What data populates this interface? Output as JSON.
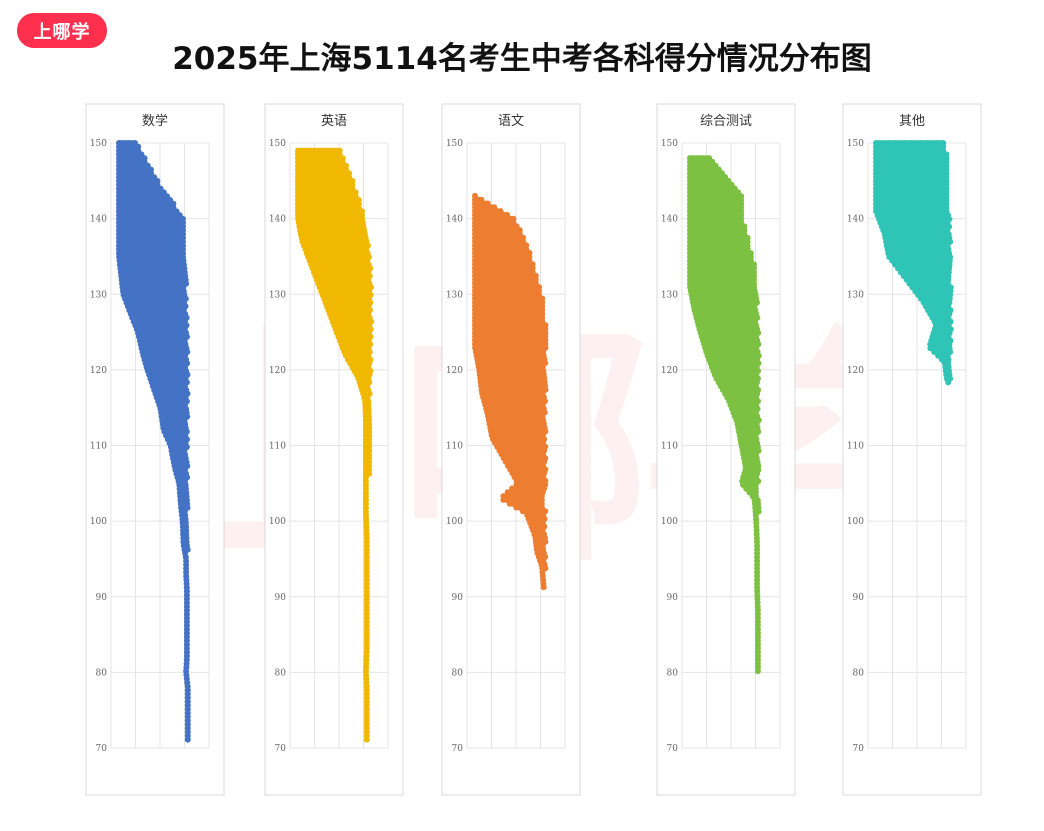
{
  "brand": {
    "label": "上哪学"
  },
  "title": "2025年上海5114名考生中考各科得分情况分布图",
  "watermark": "上哪学",
  "chart_data": [
    {
      "type": "scatter",
      "title": "数学",
      "color": "#4472c4",
      "ylim": [
        70,
        150
      ],
      "yticks": [
        150,
        140,
        130,
        120,
        110,
        100,
        90,
        80,
        70
      ],
      "x_range": [
        0,
        1
      ],
      "grid": true,
      "bands": [
        [
          150,
          0.0,
          0.2
        ],
        [
          145,
          0.0,
          0.45
        ],
        [
          140,
          0.0,
          0.75
        ],
        [
          135,
          0.0,
          0.78
        ],
        [
          130,
          0.05,
          0.78
        ],
        [
          127,
          0.15,
          0.79
        ],
        [
          125,
          0.22,
          0.79
        ],
        [
          122,
          0.28,
          0.8
        ],
        [
          120,
          0.33,
          0.8
        ],
        [
          117,
          0.42,
          0.8
        ],
        [
          115,
          0.48,
          0.8
        ],
        [
          112,
          0.52,
          0.79
        ],
        [
          110,
          0.6,
          0.79
        ],
        [
          107,
          0.65,
          0.8
        ],
        [
          105,
          0.7,
          0.8
        ],
        [
          102,
          0.72,
          0.8
        ],
        [
          100,
          0.74,
          0.8
        ],
        [
          97,
          0.75,
          0.8
        ],
        [
          95,
          0.78,
          0.8
        ],
        [
          93,
          0.78,
          0.8
        ],
        [
          91,
          0.79,
          0.8
        ],
        [
          89,
          0.79,
          0.8
        ],
        [
          87,
          0.79,
          0.8
        ],
        [
          85,
          0.79,
          0.8
        ],
        [
          83,
          0.79,
          0.8
        ],
        [
          82,
          0.79,
          0.8
        ],
        [
          80,
          0.78,
          0.78
        ],
        [
          78,
          0.8,
          0.8
        ],
        [
          77,
          0.8,
          0.8
        ],
        [
          75,
          0.8,
          0.8
        ],
        [
          73,
          0.8,
          0.8
        ],
        [
          71,
          0.8,
          0.8
        ]
      ]
    },
    {
      "type": "scatter",
      "title": "英语",
      "color": "#f0b800",
      "ylim": [
        70,
        150
      ],
      "yticks": [
        150,
        140,
        130,
        120,
        110,
        100,
        90,
        80,
        70
      ],
      "x_range": [
        0,
        1
      ],
      "grid": true,
      "bands": [
        [
          149,
          0.0,
          0.5
        ],
        [
          146,
          0.0,
          0.6
        ],
        [
          143,
          0.0,
          0.7
        ],
        [
          140,
          0.0,
          0.78
        ],
        [
          137,
          0.05,
          0.82
        ],
        [
          134,
          0.15,
          0.84
        ],
        [
          131,
          0.25,
          0.85
        ],
        [
          128,
          0.35,
          0.85
        ],
        [
          125,
          0.45,
          0.85
        ],
        [
          122,
          0.55,
          0.85
        ],
        [
          119,
          0.7,
          0.84
        ],
        [
          116,
          0.78,
          0.84
        ],
        [
          113,
          0.79,
          0.83
        ],
        [
          110,
          0.79,
          0.83
        ],
        [
          107,
          0.79,
          0.83
        ],
        [
          104,
          0.79,
          0.82
        ],
        [
          101,
          0.79,
          0.82
        ],
        [
          98,
          0.8,
          0.82
        ],
        [
          95,
          0.8,
          0.82
        ],
        [
          92,
          0.8,
          0.82
        ],
        [
          89,
          0.8,
          0.82
        ],
        [
          86,
          0.8,
          0.82
        ],
        [
          83,
          0.8,
          0.82
        ],
        [
          80,
          0.79,
          0.82
        ],
        [
          78,
          0.8,
          0.81
        ],
        [
          74,
          0.8,
          0.82
        ],
        [
          72,
          0.8,
          0.82
        ],
        [
          71,
          0.8,
          0.82
        ]
      ]
    },
    {
      "type": "scatter",
      "title": "语文",
      "color": "#ed7d31",
      "ylim": [
        70,
        150
      ],
      "yticks": [
        150,
        140,
        130,
        120,
        110,
        100,
        90,
        80,
        70
      ],
      "x_range": [
        0,
        1
      ],
      "grid": true,
      "bands": [
        [
          143,
          0.0,
          0.02
        ],
        [
          140,
          0.0,
          0.45
        ],
        [
          138,
          0.0,
          0.55
        ],
        [
          135,
          0.0,
          0.65
        ],
        [
          132,
          0.0,
          0.72
        ],
        [
          129,
          0.0,
          0.8
        ],
        [
          126,
          0.0,
          0.82
        ],
        [
          123,
          0.0,
          0.82
        ],
        [
          120,
          0.05,
          0.82
        ],
        [
          117,
          0.08,
          0.82
        ],
        [
          114,
          0.15,
          0.82
        ],
        [
          111,
          0.2,
          0.82
        ],
        [
          108,
          0.35,
          0.82
        ],
        [
          105,
          0.5,
          0.82
        ],
        [
          103,
          0.3,
          0.8
        ],
        [
          101,
          0.6,
          0.82
        ],
        [
          98,
          0.7,
          0.82
        ],
        [
          96,
          0.72,
          0.82
        ],
        [
          94,
          0.78,
          0.82
        ],
        [
          91,
          0.8,
          0.82
        ]
      ]
    },
    {
      "type": "scatter",
      "title": "综合测试",
      "color": "#7dc142",
      "ylim": [
        70,
        150
      ],
      "yticks": [
        150,
        140,
        130,
        120,
        110,
        100,
        90,
        80,
        70
      ],
      "x_range": [
        0,
        1
      ],
      "grid": true,
      "bands": [
        [
          148,
          0.0,
          0.25
        ],
        [
          145,
          0.0,
          0.45
        ],
        [
          143,
          0.0,
          0.6
        ],
        [
          140,
          0.0,
          0.62
        ],
        [
          137,
          0.0,
          0.68
        ],
        [
          134,
          0.0,
          0.75
        ],
        [
          131,
          0.0,
          0.78
        ],
        [
          128,
          0.05,
          0.78
        ],
        [
          125,
          0.12,
          0.8
        ],
        [
          122,
          0.2,
          0.8
        ],
        [
          119,
          0.3,
          0.8
        ],
        [
          116,
          0.45,
          0.8
        ],
        [
          113,
          0.55,
          0.8
        ],
        [
          110,
          0.6,
          0.8
        ],
        [
          107,
          0.65,
          0.8
        ],
        [
          105,
          0.6,
          0.8
        ],
        [
          103,
          0.75,
          0.8
        ],
        [
          100,
          0.77,
          0.8
        ],
        [
          97,
          0.78,
          0.8
        ],
        [
          94,
          0.78,
          0.8
        ],
        [
          91,
          0.78,
          0.8
        ],
        [
          88,
          0.79,
          0.8
        ],
        [
          86,
          0.79,
          0.8
        ],
        [
          83,
          0.79,
          0.8
        ],
        [
          82,
          0.79,
          0.8
        ],
        [
          80,
          0.79,
          0.8
        ]
      ]
    },
    {
      "type": "scatter",
      "title": "其他",
      "color": "#2ec4b6",
      "ylim": [
        70,
        150
      ],
      "yticks": [
        150,
        140,
        130,
        120,
        110,
        100,
        90,
        80,
        70
      ],
      "x_range": [
        0,
        1
      ],
      "grid": true,
      "bands": [
        [
          150,
          0.0,
          0.8
        ],
        [
          147,
          0.0,
          0.85
        ],
        [
          144,
          0.0,
          0.85
        ],
        [
          141,
          0.0,
          0.85
        ],
        [
          138,
          0.1,
          0.86
        ],
        [
          135,
          0.15,
          0.87
        ],
        [
          132,
          0.35,
          0.87
        ],
        [
          129,
          0.55,
          0.87
        ],
        [
          126,
          0.7,
          0.87
        ],
        [
          123,
          0.62,
          0.87
        ],
        [
          121,
          0.8,
          0.87
        ],
        [
          119,
          0.82,
          0.87
        ],
        [
          118,
          0.85,
          0.86
        ]
      ]
    }
  ]
}
